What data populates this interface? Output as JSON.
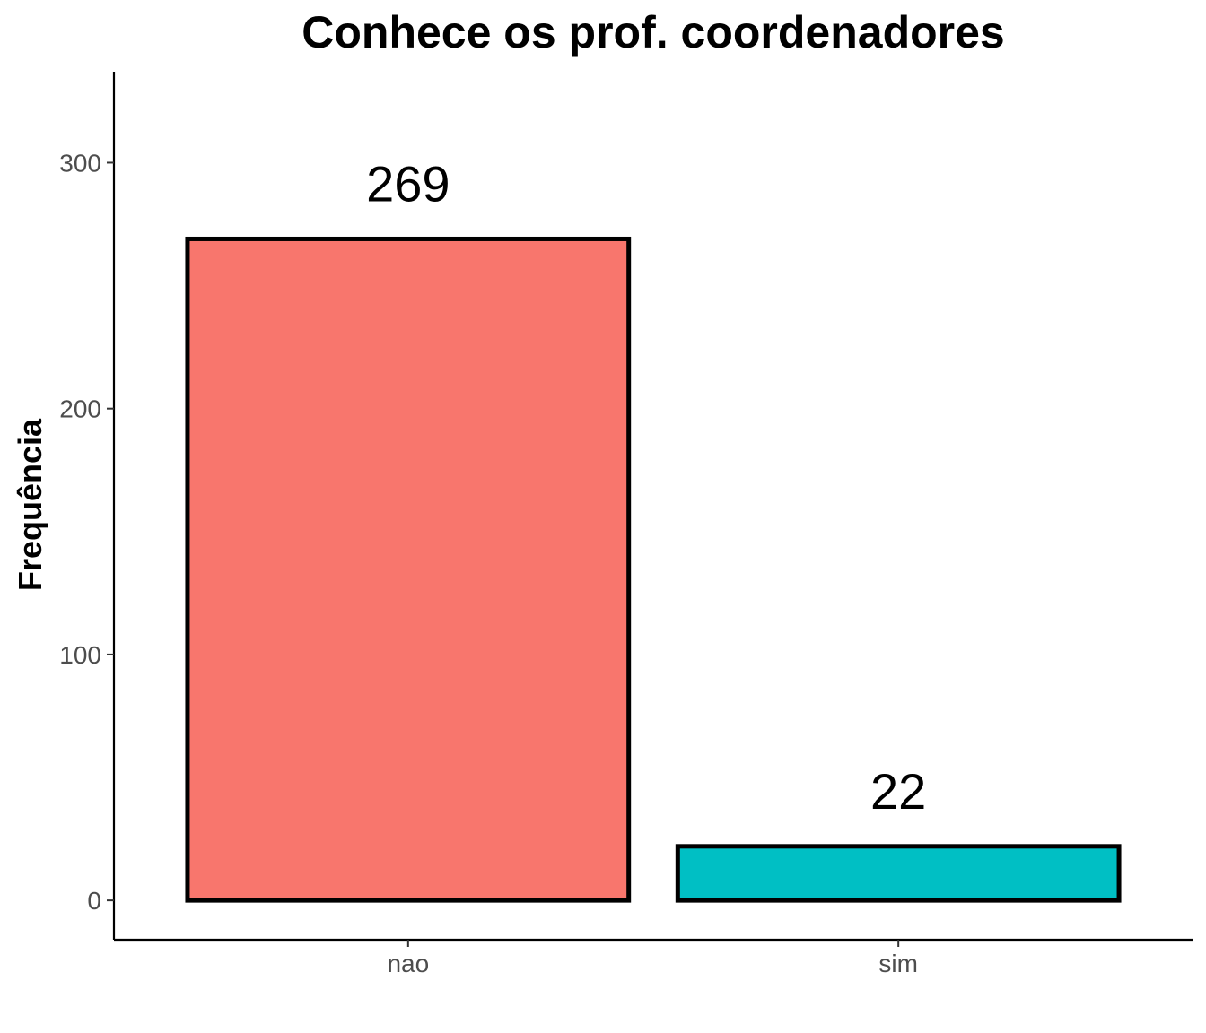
{
  "chart_data": {
    "type": "bar",
    "title": "Conhece os prof. coordenadores",
    "xlabel": "",
    "ylabel": "Frequência",
    "categories": [
      "nao",
      "sim"
    ],
    "values": [
      269,
      22
    ],
    "data_labels": [
      "269",
      "22"
    ],
    "colors": [
      "#F8766D",
      "#00BFC4"
    ],
    "bar_outline_color": "#000000",
    "ylim": [
      -16,
      337
    ],
    "yticks": [
      0,
      100,
      200,
      300
    ],
    "grid": false,
    "legend": "none"
  }
}
